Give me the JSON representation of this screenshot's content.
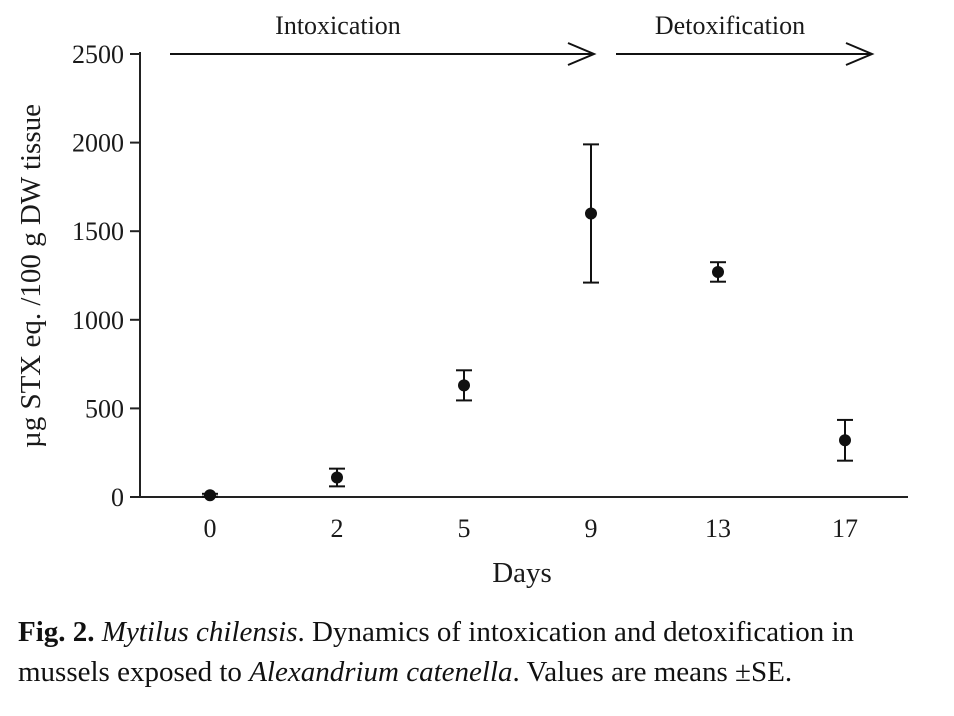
{
  "chart_data": {
    "type": "scatter",
    "error_bars": true,
    "categories": [
      "0",
      "2",
      "5",
      "9",
      "13",
      "17"
    ],
    "values": [
      10,
      110,
      630,
      1600,
      1270,
      320
    ],
    "errors": [
      8,
      50,
      85,
      390,
      55,
      115
    ],
    "xlabel": "Days",
    "ylabel": "µg STX eq. /100 g DW tissue",
    "ylim": [
      0,
      2500
    ],
    "yticks": [
      "0",
      "500",
      "1000",
      "1500",
      "2000",
      "2500"
    ],
    "grid": false,
    "annotations": [
      {
        "text": "Intoxication",
        "from_index": 0,
        "to_index": 3
      },
      {
        "text": "Detoxification",
        "from_index": 3,
        "to_index": 5
      }
    ]
  },
  "caption": {
    "label": "Fig. 2.",
    "species": "Mytilus chilensis",
    "text1": ". Dynamics of intoxication and detoxification in mussels exposed to ",
    "species2": "Alexandrium catenella",
    "text2": ". Values are means ±SE."
  }
}
